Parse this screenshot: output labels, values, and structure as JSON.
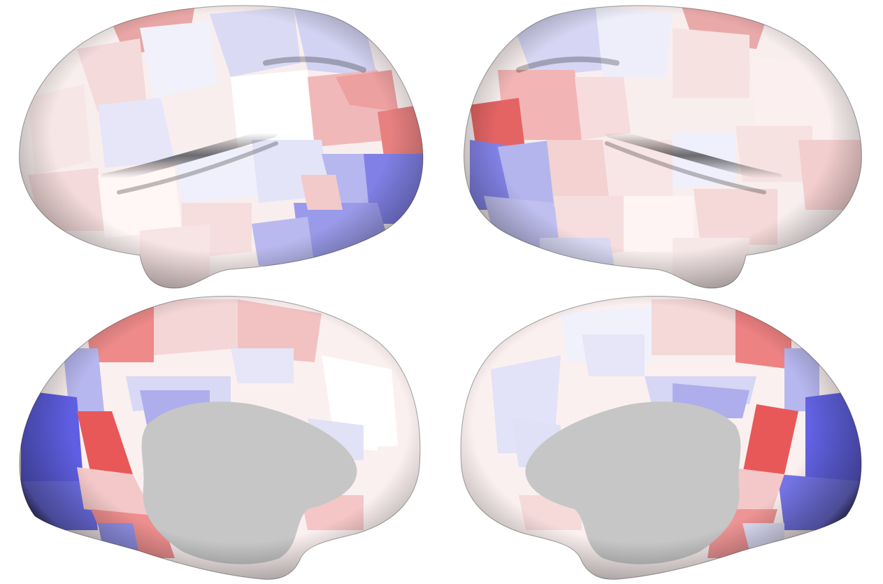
{
  "figure": {
    "views": [
      {
        "hemisphere": "left",
        "view": "lateral"
      },
      {
        "hemisphere": "right",
        "view": "lateral"
      },
      {
        "hemisphere": "left",
        "view": "medial"
      },
      {
        "hemisphere": "right",
        "view": "medial"
      }
    ],
    "colormap": {
      "negative": "#5a5ae6",
      "neutral": "#ffffff",
      "positive": "#ee4c4c",
      "medial_wall": "#c6c6c6",
      "shading": "#000000"
    }
  }
}
